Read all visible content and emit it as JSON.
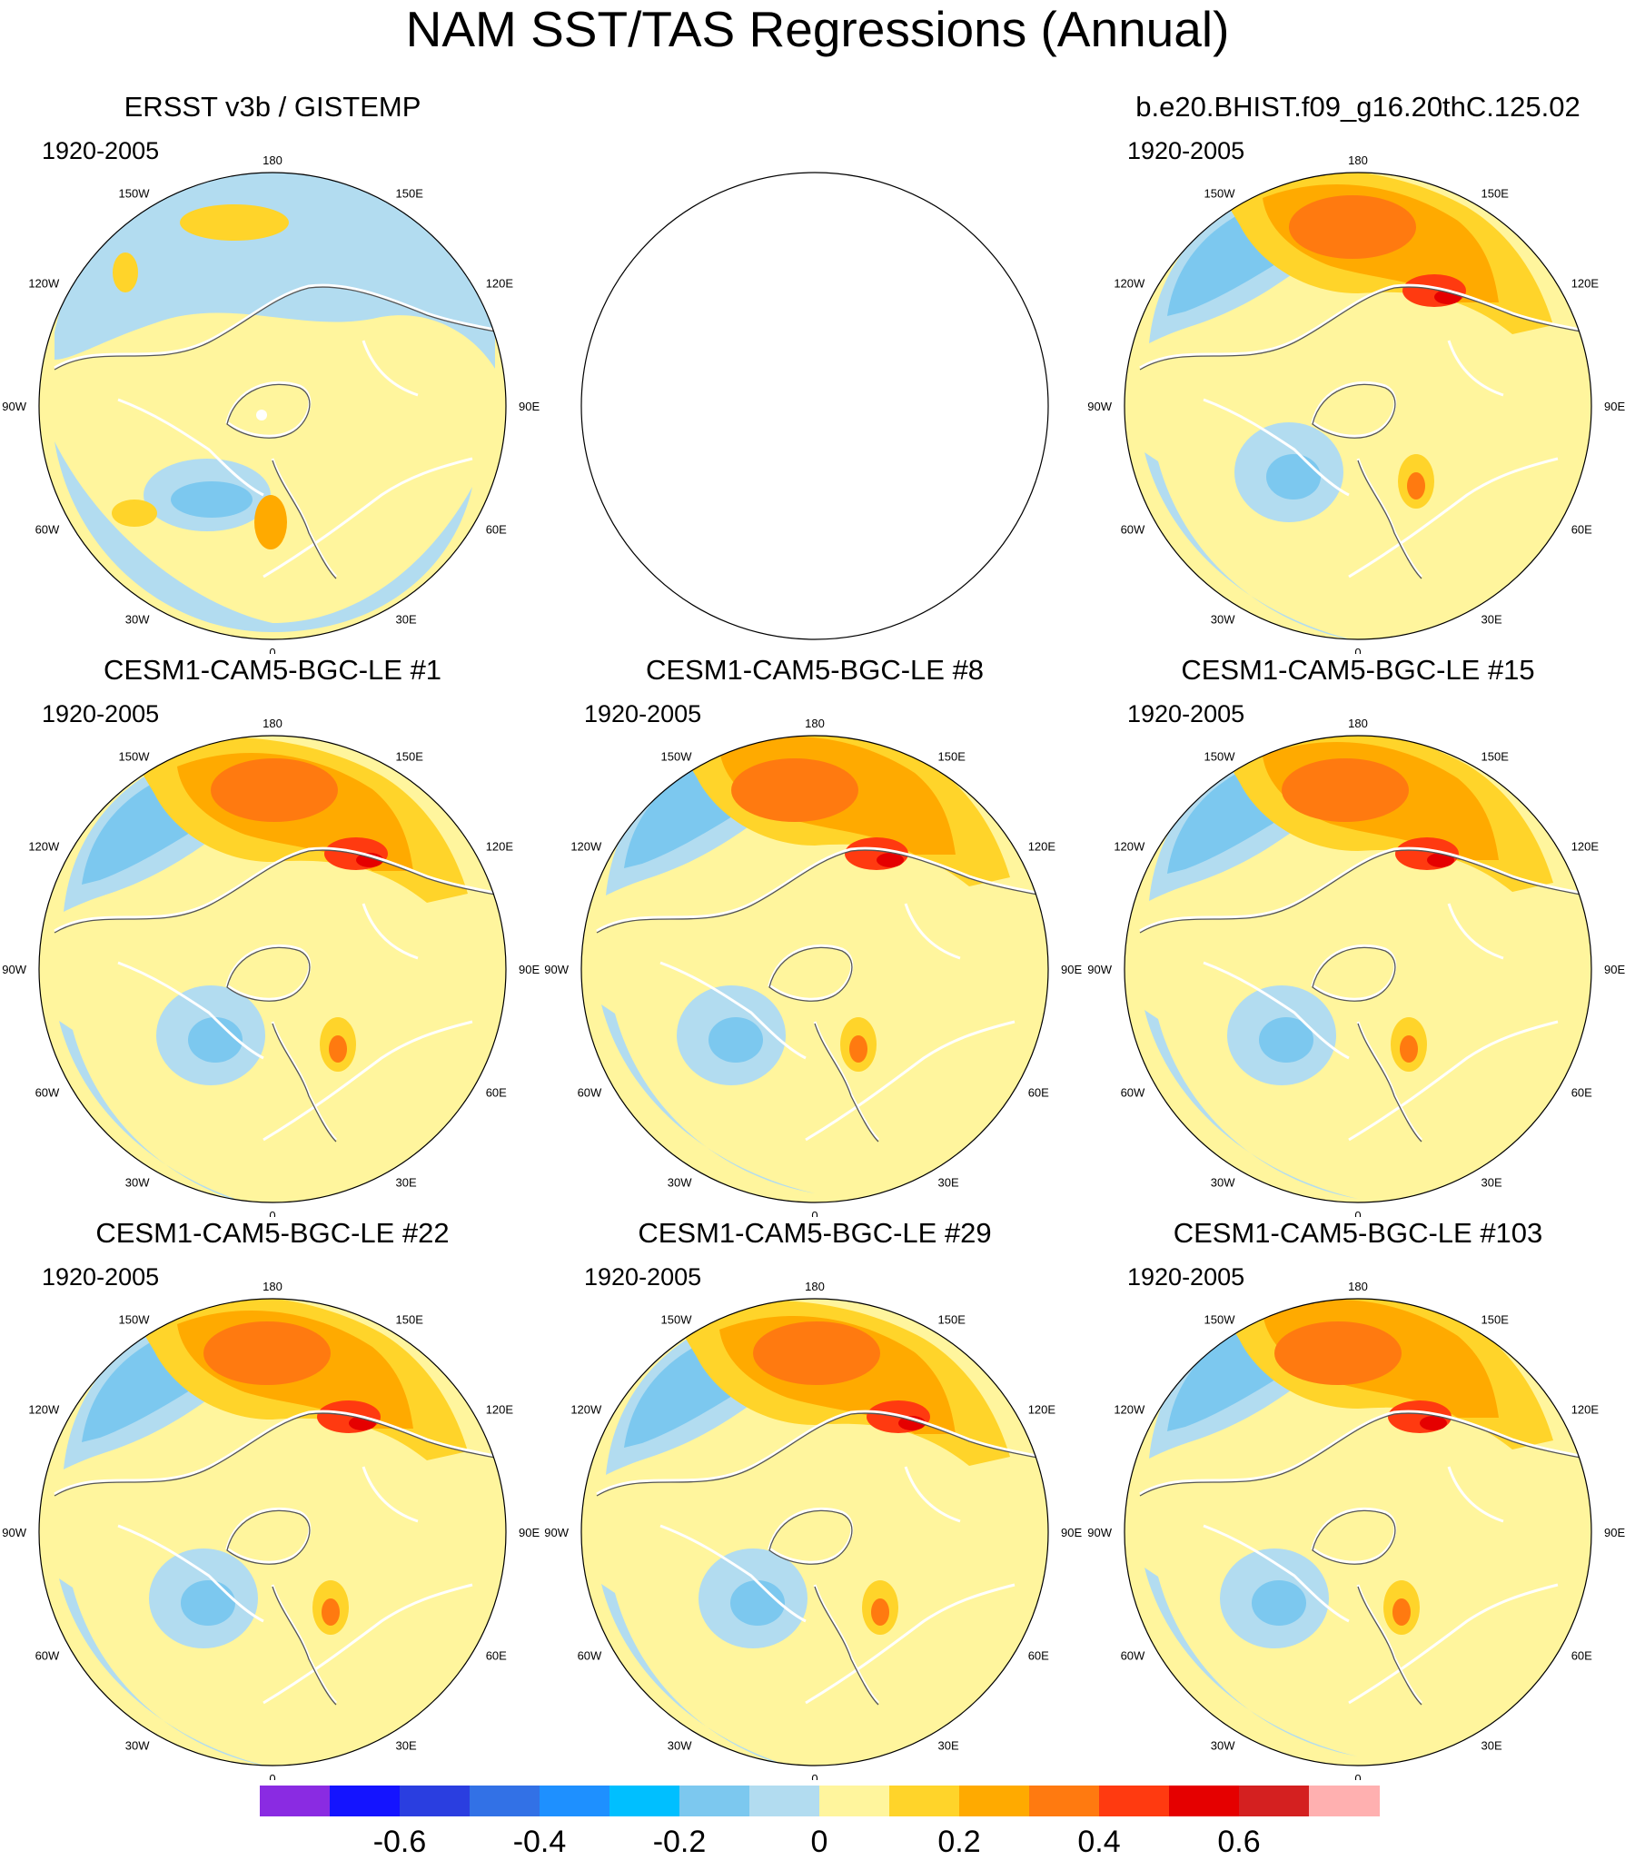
{
  "figure": {
    "title": "NAM SST/TAS Regressions (Annual)"
  },
  "panels": [
    {
      "title": "ERSST v3b / GISTEMP",
      "period": "1920-2005",
      "empty": false
    },
    {
      "title": "",
      "period": "",
      "empty": true
    },
    {
      "title": "b.e20.BHIST.f09_g16.20thC.125.02",
      "period": "1920-2005",
      "empty": false
    },
    {
      "title": "CESM1-CAM5-BGC-LE #1",
      "period": "1920-2005",
      "empty": false
    },
    {
      "title": "CESM1-CAM5-BGC-LE #8",
      "period": "1920-2005",
      "empty": false
    },
    {
      "title": "CESM1-CAM5-BGC-LE #15",
      "period": "1920-2005",
      "empty": false
    },
    {
      "title": "CESM1-CAM5-BGC-LE #22",
      "period": "1920-2005",
      "empty": false
    },
    {
      "title": "CESM1-CAM5-BGC-LE #29",
      "period": "1920-2005",
      "empty": false
    },
    {
      "title": "CESM1-CAM5-BGC-LE #103",
      "period": "1920-2005",
      "empty": false
    }
  ],
  "lon_labels": [
    "180",
    "150E",
    "120E",
    "90E",
    "60E",
    "30E",
    "0",
    "30W",
    "60W",
    "90W",
    "120W",
    "150W"
  ],
  "colorbar": {
    "colors": [
      "#8a2be2",
      "#1414ff",
      "#2a3ee0",
      "#3271e6",
      "#1e90ff",
      "#00bfff",
      "#7cc8ef",
      "#b2dcf0",
      "#fff59d",
      "#ffd42a",
      "#ffaa00",
      "#ff7a10",
      "#ff3a10",
      "#e50000",
      "#d42020",
      "#ffb0b0"
    ],
    "labels": [
      "-0.6",
      "-0.4",
      "-0.2",
      "0",
      "0.2",
      "0.4",
      "0.6"
    ]
  }
}
